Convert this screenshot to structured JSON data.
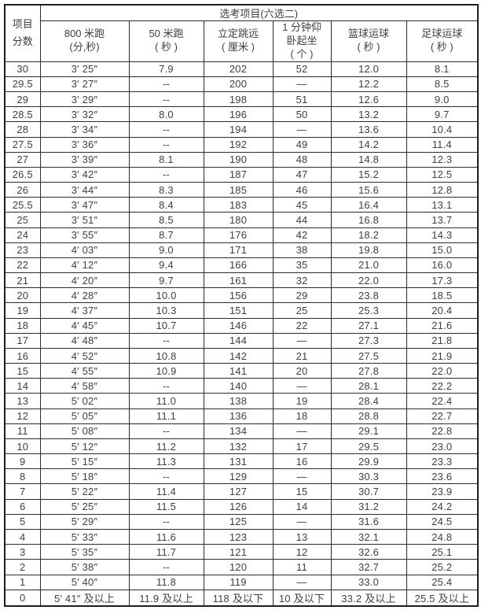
{
  "table": {
    "corner": {
      "line1": "项目",
      "line2": "分数"
    },
    "group_header": "选考项目(六选二)",
    "column_keys": [
      "score",
      "run-800m",
      "run-50m",
      "long-jump",
      "sit-ups",
      "basketball",
      "football"
    ],
    "columns": [
      {
        "line1": "800 米跑",
        "line2": "(分,秒)"
      },
      {
        "line1": "50 米跑",
        "line2": "( 秒 )"
      },
      {
        "line1": "立定跳远",
        "line2": "( 厘米 )"
      },
      {
        "line1": "1 分钟仰",
        "line2": "卧起坐",
        "line3": "( 个 )"
      },
      {
        "line1": "篮球运球",
        "line2": "( 秒 )"
      },
      {
        "line1": "足球运球",
        "line2": "( 秒 )"
      }
    ],
    "rows": [
      [
        "30",
        "3′ 25″",
        "7.9",
        "202",
        "52",
        "12.0",
        "8.1"
      ],
      [
        "29.5",
        "3′ 27″",
        "--",
        "200",
        "—",
        "12.2",
        "8.5"
      ],
      [
        "29",
        "3′ 29″",
        "--",
        "198",
        "51",
        "12.6",
        "9.0"
      ],
      [
        "28.5",
        "3′ 32″",
        "8.0",
        "196",
        "50",
        "13.2",
        "9.7"
      ],
      [
        "28",
        "3′ 34″",
        "--",
        "194",
        "—",
        "13.6",
        "10.4"
      ],
      [
        "27.5",
        "3′ 36″",
        "--",
        "192",
        "49",
        "14.2",
        "11.4"
      ],
      [
        "27",
        "3′ 39″",
        "8.1",
        "190",
        "48",
        "14.8",
        "12.3"
      ],
      [
        "26.5",
        "3′ 42″",
        "--",
        "187",
        "47",
        "15.2",
        "12.5"
      ],
      [
        "26",
        "3′ 44″",
        "8.3",
        "185",
        "46",
        "15.6",
        "12.8"
      ],
      [
        "25.5",
        "3′ 47″",
        "8.4",
        "183",
        "45",
        "16.4",
        "13.1"
      ],
      [
        "25",
        "3′ 51″",
        "8.5",
        "180",
        "44",
        "16.8",
        "13.7"
      ],
      [
        "24",
        "3′ 55″",
        "8.7",
        "176",
        "42",
        "18.2",
        "14.3"
      ],
      [
        "23",
        "4′ 03″",
        "9.0",
        "171",
        "38",
        "19.8",
        "15.0"
      ],
      [
        "22",
        "4′ 12″",
        "9.4",
        "166",
        "35",
        "21.0",
        "16.0"
      ],
      [
        "21",
        "4′ 20″",
        "9.7",
        "161",
        "32",
        "22.0",
        "17.3"
      ],
      [
        "20",
        "4′ 28″",
        "10.0",
        "156",
        "29",
        "23.8",
        "18.5"
      ],
      [
        "19",
        "4′ 37″",
        "10.3",
        "151",
        "25",
        "25.3",
        "20.4"
      ],
      [
        "18",
        "4′ 45″",
        "10.7",
        "146",
        "22",
        "27.1",
        "21.6"
      ],
      [
        "17",
        "4′ 48″",
        "--",
        "144",
        "—",
        "27.3",
        "21.8"
      ],
      [
        "16",
        "4′ 52″",
        "10.8",
        "142",
        "21",
        "27.5",
        "21.9"
      ],
      [
        "15",
        "4′ 55″",
        "10.9",
        "141",
        "20",
        "27.8",
        "22.0"
      ],
      [
        "14",
        "4′ 58″",
        "--",
        "140",
        "—",
        "28.1",
        "22.2"
      ],
      [
        "13",
        "5′ 02″",
        "11.0",
        "138",
        "19",
        "28.4",
        "22.4"
      ],
      [
        "12",
        "5′ 05″",
        "11.1",
        "136",
        "18",
        "28.8",
        "22.7"
      ],
      [
        "11",
        "5′ 08″",
        "--",
        "134",
        "—",
        "29.1",
        "22.8"
      ],
      [
        "10",
        "5′ 12″",
        "11.2",
        "132",
        "17",
        "29.5",
        "23.0"
      ],
      [
        "9",
        "5′ 15″",
        "11.3",
        "131",
        "16",
        "29.9",
        "23.3"
      ],
      [
        "8",
        "5′ 18″",
        "--",
        "129",
        "—",
        "30.3",
        "23.6"
      ],
      [
        "7",
        "5′ 22″",
        "11.4",
        "127",
        "15",
        "30.7",
        "23.9"
      ],
      [
        "6",
        "5′ 25″",
        "11.5",
        "126",
        "14",
        "31.2",
        "24.2"
      ],
      [
        "5",
        "5′ 29″",
        "--",
        "125",
        "—",
        "31.6",
        "24.5"
      ],
      [
        "4",
        "5′ 33″",
        "11.6",
        "123",
        "13",
        "32.1",
        "24.8"
      ],
      [
        "3",
        "5′ 35″",
        "11.7",
        "121",
        "12",
        "32.6",
        "25.1"
      ],
      [
        "2",
        "5′ 38″",
        "--",
        "120",
        "11",
        "32.7",
        "25.2"
      ],
      [
        "1",
        "5′ 40″",
        "11.8",
        "119",
        "—",
        "33.0",
        "25.4"
      ],
      [
        "0",
        "5′ 41″ 及以上",
        "11.9 及以上",
        "118 及以下",
        "10 及以下",
        "33.2 及以上",
        "25.5 及以上"
      ]
    ]
  }
}
